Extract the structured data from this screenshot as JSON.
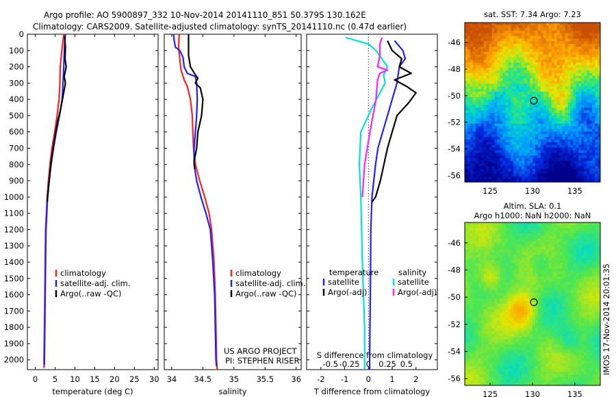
{
  "header": {
    "line1": "Argo profile: AO 5900897_332 10-Nov-2014 20141110_851 50.379S 130.162E",
    "line2": "Climatology: CARS2009. Satellite-adjusted climatology: synTS_20141110.nc (0.47d earlier)"
  },
  "colors": {
    "climatology": "#ff2020",
    "satellite": "#2020ff",
    "argo": "#000000",
    "s_satellite": "#00e0e0",
    "s_argo": "#ff20ff"
  },
  "depth_ticks": [
    "0",
    "100",
    "200",
    "300",
    "400",
    "500",
    "600",
    "700",
    "800",
    "900",
    "1000",
    "1100",
    "1200",
    "1300",
    "1400",
    "1500",
    "1600",
    "1700",
    "1800",
    "1900",
    "2000"
  ],
  "chart_data": [
    {
      "type": "line",
      "xlabel": "temperature (deg C)",
      "xlim": [
        -2,
        31
      ],
      "ylim": [
        2060,
        0
      ],
      "y_reversed": true,
      "xticks": [
        "0",
        "5",
        "10",
        "15",
        "20",
        "25",
        "30"
      ],
      "legend": [
        "climatology",
        "satellite-adj. clim.",
        "Argo(..raw -QC)"
      ],
      "legend_position": "lower-center",
      "series": [
        {
          "name": "climatology",
          "color": "#ff2020",
          "points": [
            [
              7.2,
              0
            ],
            [
              6.9,
              60
            ],
            [
              6.6,
              120
            ],
            [
              6.3,
              200
            ],
            [
              6.2,
              300
            ],
            [
              6.0,
              400
            ],
            [
              5.5,
              500
            ],
            [
              4.9,
              600
            ],
            [
              4.2,
              700
            ],
            [
              3.7,
              800
            ],
            [
              3.3,
              900
            ],
            [
              3.0,
              1000
            ],
            [
              2.8,
              1100
            ],
            [
              2.6,
              1200
            ],
            [
              2.5,
              1400
            ],
            [
              2.4,
              1600
            ],
            [
              2.3,
              1800
            ],
            [
              2.2,
              2000
            ],
            [
              2.2,
              2050
            ]
          ]
        },
        {
          "name": "satellite-adj. clim.",
          "color": "#2020ff",
          "points": [
            [
              7.6,
              0
            ],
            [
              7.4,
              60
            ],
            [
              7.3,
              120
            ],
            [
              7.2,
              200
            ],
            [
              7.0,
              300
            ],
            [
              6.8,
              400
            ],
            [
              6.1,
              500
            ],
            [
              5.3,
              600
            ],
            [
              4.6,
              700
            ],
            [
              4.0,
              800
            ],
            [
              3.5,
              900
            ],
            [
              3.1,
              1000
            ],
            [
              2.9,
              1100
            ],
            [
              2.7,
              1200
            ],
            [
              2.6,
              1400
            ],
            [
              2.5,
              1600
            ],
            [
              2.4,
              1800
            ],
            [
              2.3,
              2000
            ],
            [
              2.3,
              2030
            ]
          ]
        },
        {
          "name": "Argo(..raw -QC)",
          "color": "#000000",
          "points": [
            [
              7.4,
              10
            ],
            [
              7.6,
              80
            ],
            [
              7.5,
              150
            ],
            [
              7.8,
              200
            ],
            [
              7.3,
              260
            ],
            [
              7.6,
              300
            ],
            [
              7.0,
              380
            ],
            [
              6.4,
              460
            ],
            [
              5.6,
              540
            ],
            [
              5.0,
              620
            ],
            [
              4.5,
              700
            ],
            [
              4.0,
              780
            ],
            [
              3.6,
              880
            ],
            [
              3.2,
              980
            ],
            [
              3.0,
              1030
            ]
          ]
        }
      ]
    },
    {
      "type": "line",
      "xlabel": "salinity",
      "xlim": [
        33.88,
        36.08
      ],
      "ylim": [
        2060,
        0
      ],
      "y_reversed": true,
      "xticks": [
        "34",
        "34.5",
        "35",
        "35.5",
        "36"
      ],
      "legend": [
        "climatology",
        "satellite-adj. clim.",
        "Argo(..raw -QC)"
      ],
      "legend_position": "lower-right",
      "annotations": [
        "US ARGO PROJECT",
        "PI: STEPHEN RISER"
      ],
      "series": [
        {
          "name": "climatology",
          "color": "#ff2020",
          "points": [
            [
              34.12,
              0
            ],
            [
              34.11,
              80
            ],
            [
              34.13,
              150
            ],
            [
              34.15,
              220
            ],
            [
              34.2,
              280
            ],
            [
              34.25,
              320
            ],
            [
              34.3,
              400
            ],
            [
              34.33,
              500
            ],
            [
              34.34,
              600
            ],
            [
              34.35,
              700
            ],
            [
              34.38,
              800
            ],
            [
              34.45,
              900
            ],
            [
              34.53,
              1000
            ],
            [
              34.6,
              1100
            ],
            [
              34.64,
              1200
            ],
            [
              34.68,
              1400
            ],
            [
              34.7,
              1600
            ],
            [
              34.71,
              1800
            ],
            [
              34.72,
              2000
            ],
            [
              34.73,
              2060
            ]
          ]
        },
        {
          "name": "satellite-adj. clim.",
          "color": "#2020ff",
          "points": [
            [
              34.03,
              0
            ],
            [
              34.04,
              40
            ],
            [
              34.06,
              80
            ],
            [
              34.13,
              100
            ],
            [
              34.18,
              140
            ],
            [
              34.2,
              200
            ],
            [
              34.25,
              240
            ],
            [
              34.38,
              260
            ],
            [
              34.4,
              300
            ],
            [
              34.41,
              400
            ],
            [
              34.4,
              500
            ],
            [
              34.38,
              600
            ],
            [
              34.36,
              700
            ],
            [
              34.36,
              800
            ],
            [
              34.4,
              900
            ],
            [
              34.47,
              1000
            ],
            [
              34.55,
              1100
            ],
            [
              34.62,
              1200
            ],
            [
              34.66,
              1400
            ],
            [
              34.69,
              1600
            ],
            [
              34.7,
              1800
            ],
            [
              34.71,
              2000
            ],
            [
              34.72,
              2040
            ]
          ]
        },
        {
          "name": "Argo(..raw -QC)",
          "color": "#000000",
          "points": [
            [
              34.27,
              0
            ],
            [
              34.27,
              60
            ],
            [
              34.27,
              130
            ],
            [
              34.3,
              200
            ],
            [
              34.38,
              250
            ],
            [
              34.42,
              270
            ],
            [
              34.38,
              300
            ],
            [
              34.46,
              330
            ],
            [
              34.5,
              400
            ],
            [
              34.48,
              500
            ],
            [
              34.42,
              600
            ],
            [
              34.4,
              700
            ],
            [
              34.36,
              780
            ],
            [
              34.37,
              830
            ]
          ]
        }
      ]
    },
    {
      "type": "line",
      "xlabel": "T difference from climatology",
      "xlabel2": "S difference from climatology",
      "xlim": [
        -2.6,
        2.9
      ],
      "ylim": [
        2060,
        0
      ],
      "y_reversed": true,
      "xticks": [
        "-2",
        "-1",
        "0",
        "1",
        "2"
      ],
      "xticks2": [
        "-0.5",
        "-0.25",
        "0",
        "0.25",
        "0.5"
      ],
      "legend_groups": [
        {
          "title": "temperature",
          "items": [
            "satellite",
            "Argo(-adj)"
          ]
        },
        {
          "title": "salinity",
          "items": [
            "satellite",
            "Argo(-adj)"
          ]
        }
      ],
      "series": [
        {
          "name": "T satellite",
          "color": "#2020ff",
          "points": [
            [
              1.1,
              40
            ],
            [
              1.45,
              100
            ],
            [
              1.55,
              150
            ],
            [
              1.3,
              200
            ],
            [
              1.2,
              300
            ],
            [
              1.0,
              400
            ],
            [
              0.8,
              500
            ],
            [
              0.6,
              600
            ],
            [
              0.4,
              700
            ],
            [
              0.3,
              800
            ],
            [
              0.15,
              1000
            ],
            [
              0.1,
              1200
            ],
            [
              0.08,
              1600
            ],
            [
              0.05,
              2000
            ],
            [
              0.05,
              2060
            ]
          ]
        },
        {
          "name": "T Argo(-adj)",
          "color": "#000000",
          "points": [
            [
              0.8,
              40
            ],
            [
              1.0,
              100
            ],
            [
              1.4,
              150
            ],
            [
              1.3,
              200
            ],
            [
              1.8,
              240
            ],
            [
              1.1,
              280
            ],
            [
              1.6,
              320
            ],
            [
              2.0,
              360
            ],
            [
              1.7,
              420
            ],
            [
              1.2,
              500
            ],
            [
              1.0,
              600
            ],
            [
              0.8,
              700
            ],
            [
              0.5,
              900
            ],
            [
              0.3,
              1000
            ],
            [
              0.15,
              1030
            ]
          ]
        },
        {
          "name": "S satellite",
          "color": "#00e0e0",
          "points": [
            [
              -0.3,
              20
            ],
            [
              0.0,
              60
            ],
            [
              0.1,
              100
            ],
            [
              0.25,
              200
            ],
            [
              0.2,
              250
            ],
            [
              0.22,
              300
            ],
            [
              0.05,
              450
            ],
            [
              -0.1,
              600
            ],
            [
              -0.12,
              800
            ],
            [
              -0.1,
              1000
            ],
            [
              -0.08,
              1400
            ],
            [
              -0.05,
              1800
            ],
            [
              -0.05,
              2060
            ]
          ]
        },
        {
          "name": "S Argo(-adj)",
          "color": "#ff20ff",
          "points": [
            [
              0.18,
              20
            ],
            [
              0.15,
              60
            ],
            [
              0.15,
              130
            ],
            [
              0.12,
              200
            ],
            [
              0.25,
              220
            ],
            [
              0.15,
              240
            ],
            [
              0.12,
              280
            ],
            [
              0.1,
              400
            ],
            [
              0.02,
              600
            ],
            [
              -0.05,
              800
            ],
            [
              -0.08,
              1000
            ]
          ]
        }
      ]
    },
    {
      "type": "heatmap",
      "title": "sat. SST: 7.34 Argo: 7.23",
      "xticks": [
        "125",
        "130",
        "135"
      ],
      "yticks": [
        "-46",
        "-48",
        "-50",
        "-52",
        "-54",
        "-56"
      ],
      "xlim": [
        122,
        138
      ],
      "ylim": [
        -56.5,
        -44.5
      ],
      "marker": [
        130.162,
        -50.379
      ]
    },
    {
      "type": "heatmap",
      "title": "Altim. SLA: 0.1",
      "subtitle": "Argo h1000: NaN h2000: NaN",
      "xticks": [
        "125",
        "130",
        "135"
      ],
      "yticks": [
        "-46",
        "-48",
        "-50",
        "-52",
        "-54",
        "-56"
      ],
      "xlim": [
        122,
        138
      ],
      "ylim": [
        -56.5,
        -44.5
      ],
      "marker": [
        130.162,
        -50.379
      ]
    }
  ],
  "footer_stamp": "IMOS 17-Nov-2014 20:01:35"
}
